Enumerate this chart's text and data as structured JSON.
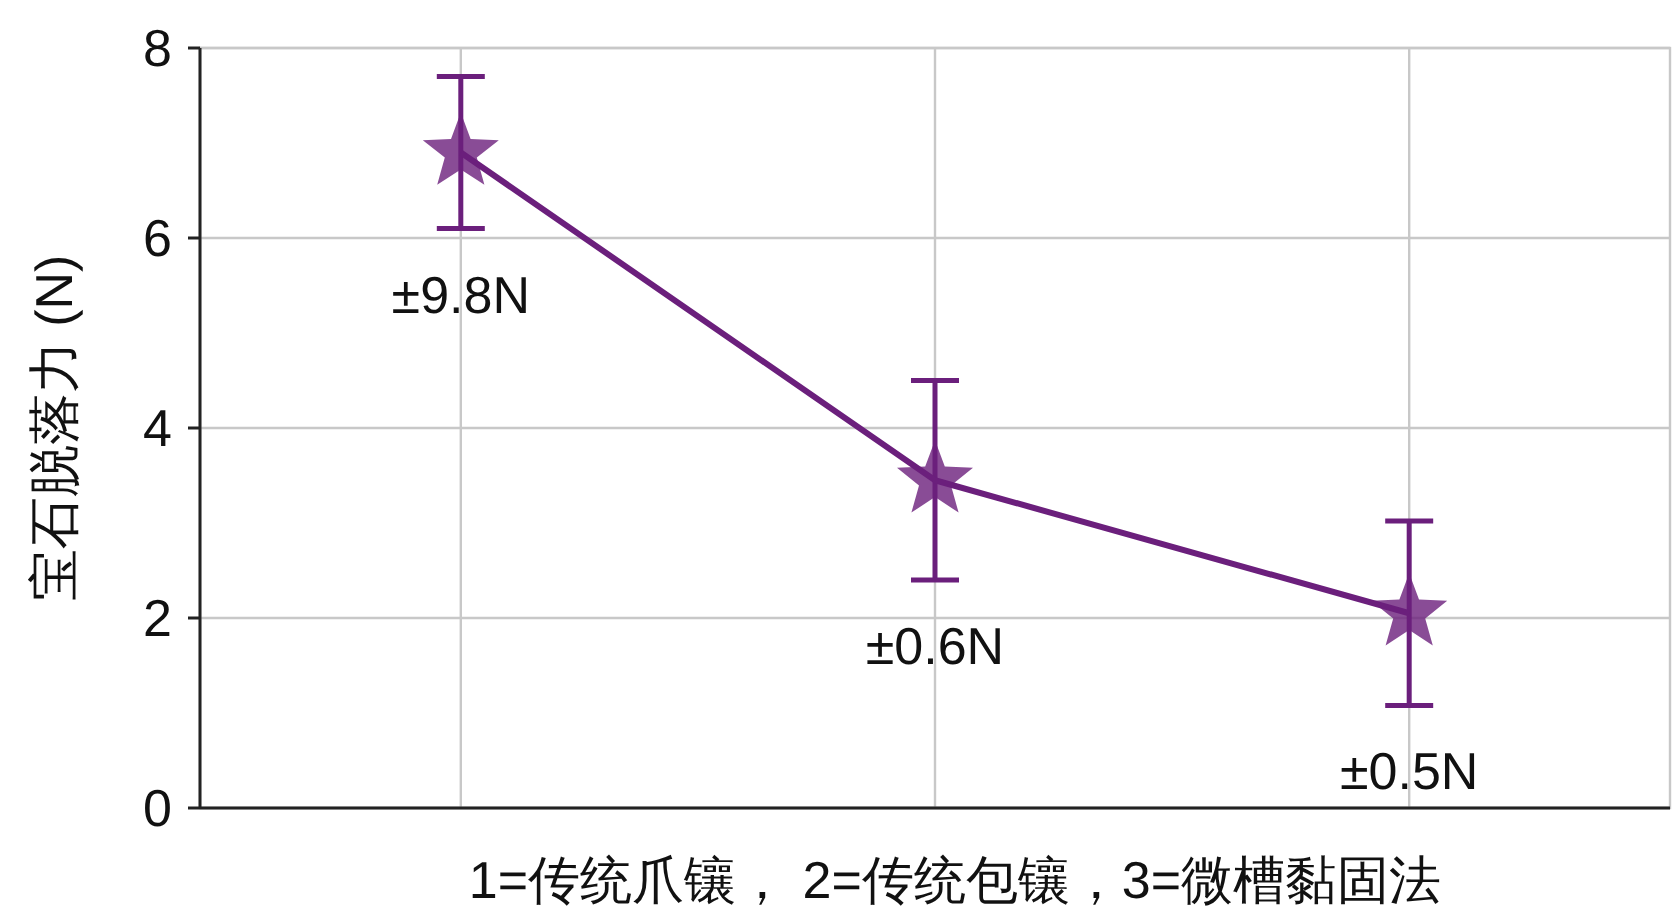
{
  "chart_data": {
    "type": "line",
    "ylabel": "宝石脱落力 (N)",
    "xlabel": "1=传统爪镶， 2=传统包镶，3=微槽黏固法",
    "categories": [
      null,
      null,
      null
    ],
    "series": [
      {
        "color": "#6b1f7c",
        "values": [
          6.9,
          3.45,
          2.05
        ],
        "errors": [
          0.8,
          1.05,
          0.97
        ]
      }
    ],
    "ylim": [
      0,
      8
    ],
    "yticks": [
      0,
      2,
      4,
      6,
      8
    ],
    "grid": true,
    "marker": "star",
    "line_style": "solid",
    "annotations": [
      "±9.8N",
      "±0.6N",
      "±0.5N"
    ]
  }
}
